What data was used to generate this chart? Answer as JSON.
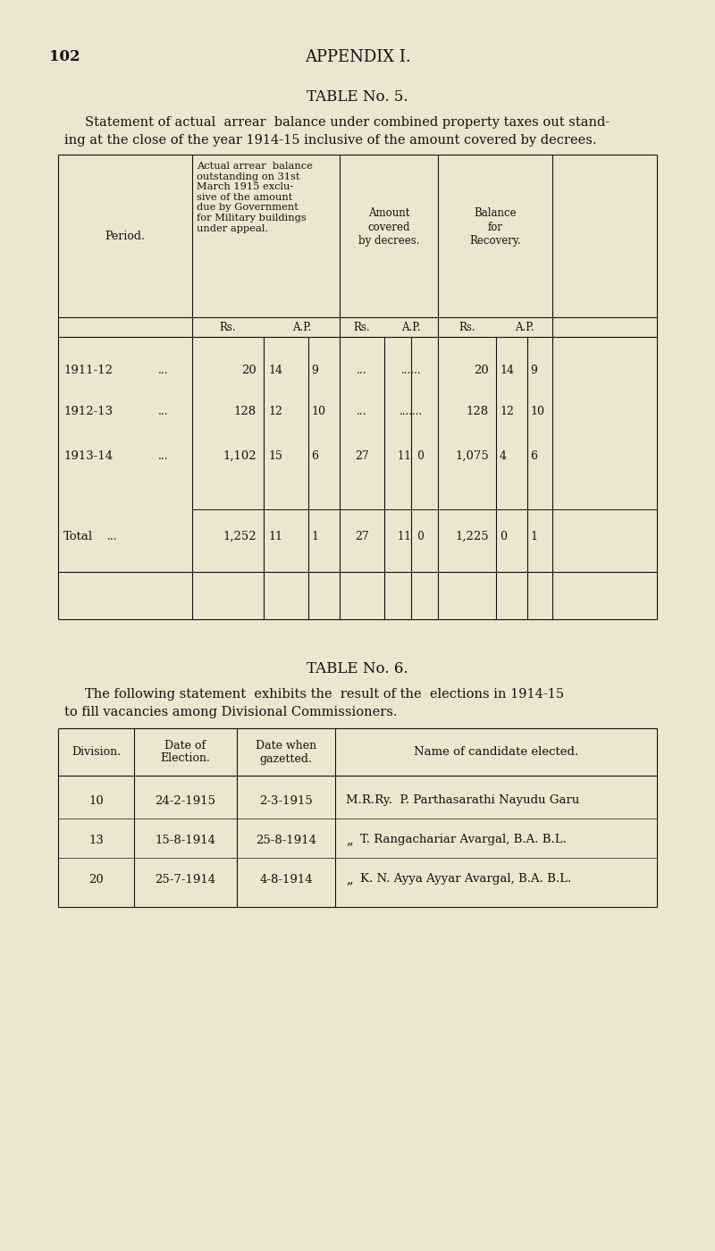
{
  "bg_color": "#ede5d0",
  "text_color": "#111111",
  "page_number": "102",
  "appendix_title": "APPENDIX I.",
  "table5_title": "TABLE No. 5.",
  "table5_desc1": "Statement of actual  arrear  balance under combined property taxes out stand-",
  "table5_desc2": "ing at the close of the year 1914-15 inclusive of the amount covered by decrees.",
  "table6_title": "TABLE No. 6.",
  "table6_desc1": "The following statement  exhibits the  result of the  elections in 1914-15",
  "table6_desc2": "to fill vacancies among Divisional Commissioners."
}
